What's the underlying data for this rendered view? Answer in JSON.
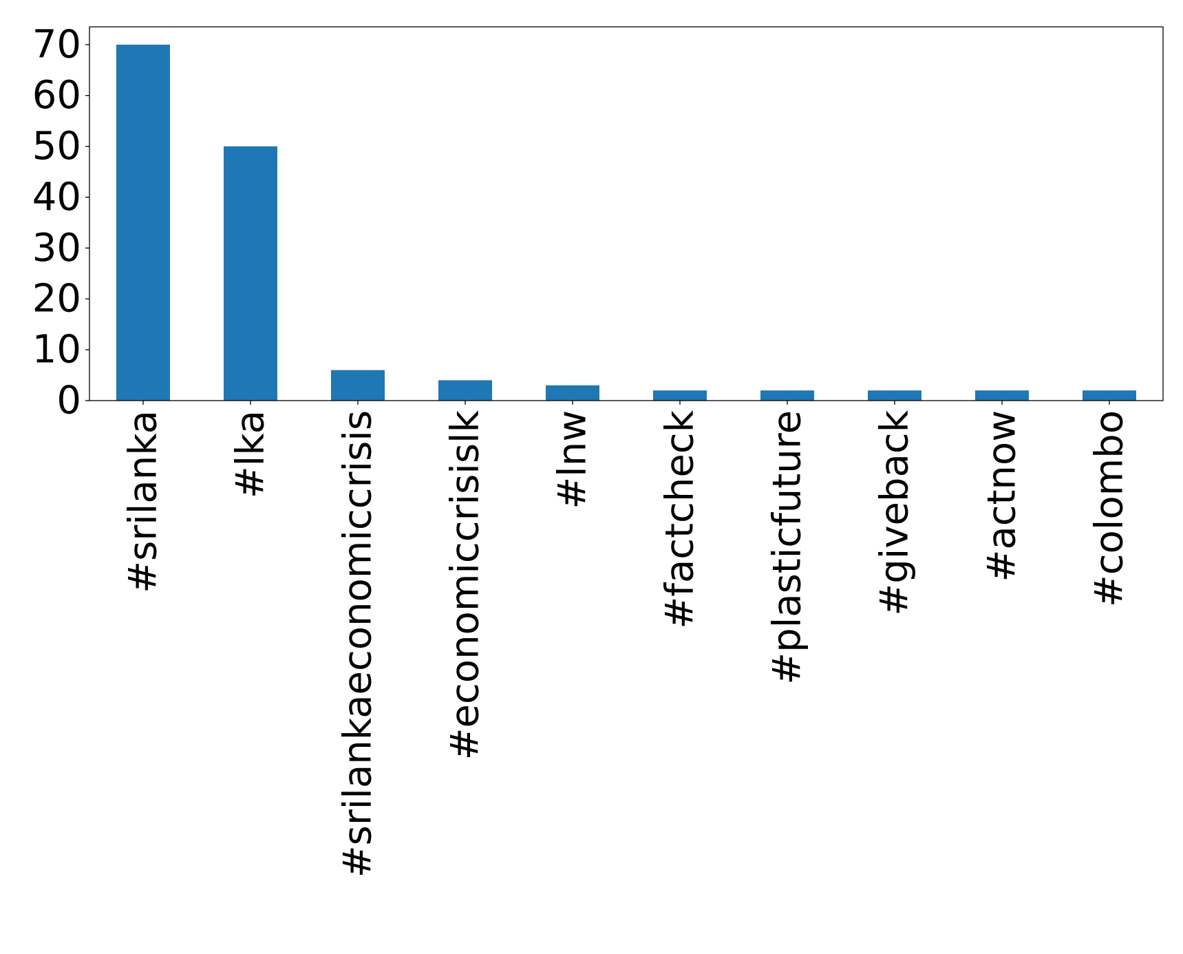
{
  "chart_data": {
    "type": "bar",
    "title": "",
    "xlabel": "",
    "ylabel": "",
    "categories": [
      "#srilanka",
      "#lka",
      "#srilankaeconomiccrisis",
      "#economiccrisislk",
      "#lnw",
      "#factcheck",
      "#plasticfuture",
      "#giveback",
      "#actnow",
      "#colombo"
    ],
    "values": [
      70,
      50,
      6,
      4,
      3,
      2,
      2,
      2,
      2,
      2
    ],
    "ylim": [
      0,
      73.5
    ],
    "yticks": [
      0,
      10,
      20,
      30,
      40,
      50,
      60,
      70
    ],
    "grid": false,
    "legend": false,
    "colors": {
      "bar": "#1f77b4",
      "axis": "#000000",
      "background": "#ffffff"
    }
  }
}
